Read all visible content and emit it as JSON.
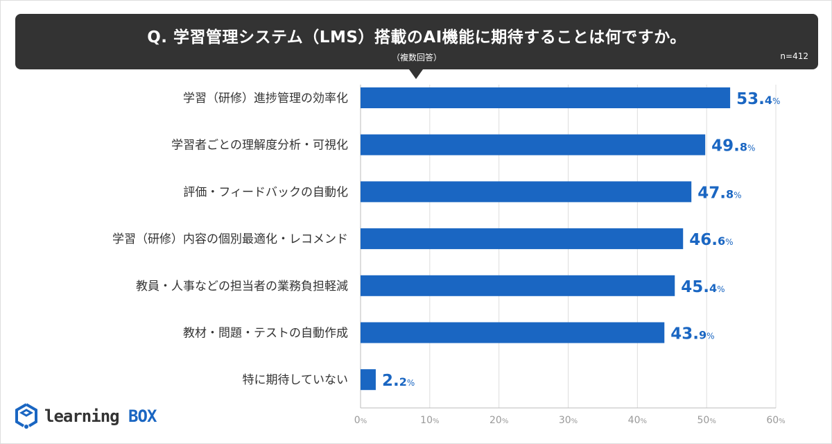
{
  "header": {
    "title": "Q. 学習管理システム（LMS）搭載のAI機能に期待することは何ですか。",
    "subtitle": "（複数回答）",
    "sample": "n=412"
  },
  "logo": {
    "text_a": "learning",
    "text_b": "BOX"
  },
  "chart_data": {
    "type": "bar",
    "orientation": "horizontal",
    "categories": [
      "学習（研修）進捗管理の効率化",
      "学習者ごとの理解度分析・可視化",
      "評価・フィードバックの自動化",
      "学習（研修）内容の個別最適化・レコメンド",
      "教員・人事などの担当者の業務負担軽減",
      "教材・問題・テストの自動作成",
      "特に期待していない"
    ],
    "values": [
      53.4,
      49.8,
      47.8,
      46.6,
      45.4,
      43.9,
      2.2
    ],
    "unit": "%",
    "xlim": [
      0,
      60
    ],
    "xticks": [
      0,
      10,
      20,
      30,
      40,
      50,
      60
    ],
    "grid": true,
    "colors": {
      "bar": "#1a66c2",
      "label": "#1a66c2",
      "axis": "#999999",
      "grid": "#dddddd"
    }
  }
}
